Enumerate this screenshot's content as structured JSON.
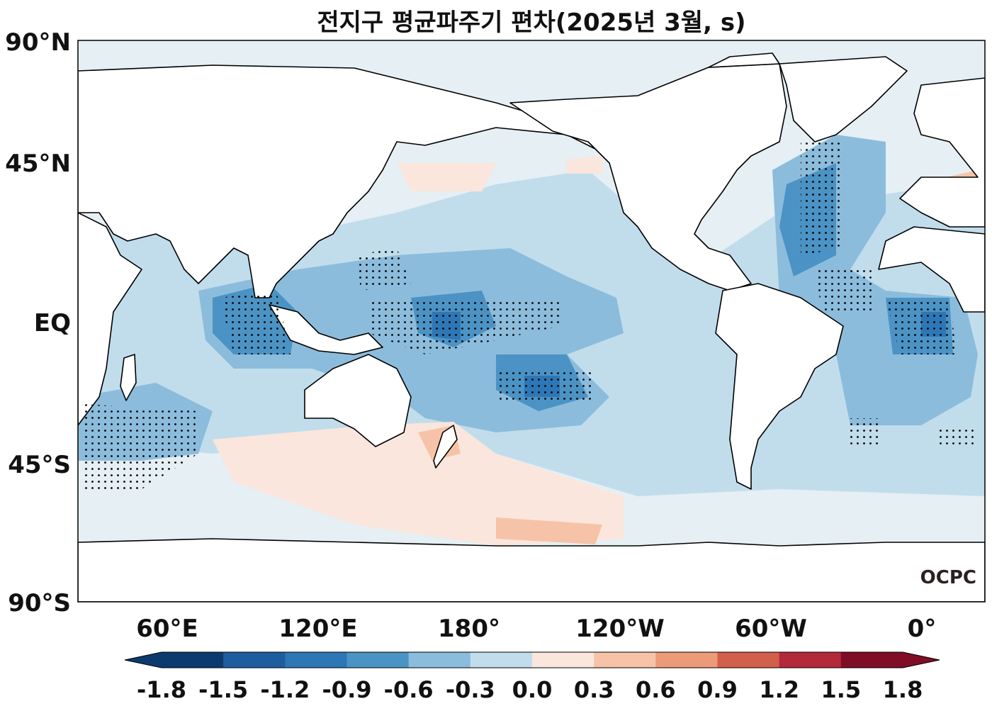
{
  "title": "전지구 평균파주기 편차(2025년 3월, s)",
  "lat_labels": [
    "90°N",
    "45°N",
    "EQ",
    "45°S",
    "90°S"
  ],
  "lon_labels": [
    "60°E",
    "120°E",
    "180°",
    "120°W",
    "60°W",
    "0°"
  ],
  "colorbar": {
    "ticks": [
      "-1.8",
      "-1.5",
      "-1.2",
      "-0.9",
      "-0.6",
      "-0.3",
      "0.0",
      "0.3",
      "0.6",
      "0.9",
      "1.2",
      "1.5",
      "1.8"
    ],
    "colors": [
      "#0d3a6e",
      "#1e5d9f",
      "#2e77b6",
      "#4b93c4",
      "#8cbcdc",
      "#c1ddec",
      "#e5eff4",
      "#fae6dc",
      "#f7c3a8",
      "#ed9a78",
      "#d25e4c",
      "#b3283a",
      "#800d26"
    ],
    "extend": "both"
  },
  "logo": "OCPC",
  "colors": {
    "land": "#ffffff",
    "coast": "#000000",
    "stipple": "#000000"
  }
}
